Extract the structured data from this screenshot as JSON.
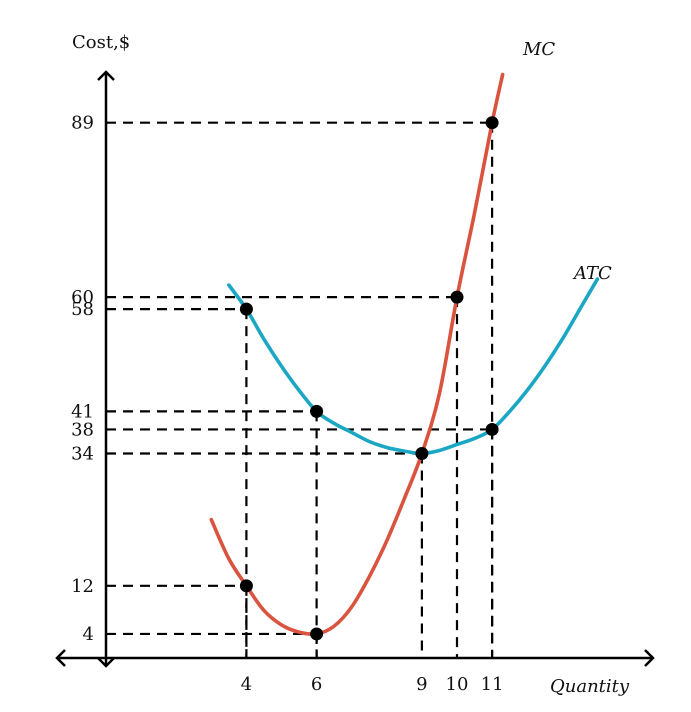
{
  "chart_data": {
    "type": "line",
    "xlabel": "Quantity",
    "ylabel": "Cost,$",
    "xlim": [
      0,
      15.5
    ],
    "ylim": [
      0,
      100
    ],
    "x_ticks": [
      4,
      6,
      9,
      10,
      11
    ],
    "y_ticks": [
      4,
      12,
      34,
      38,
      41,
      58,
      60,
      89
    ],
    "grid": false,
    "series": [
      {
        "name": "MC",
        "color": "#d9533e",
        "x": [
          3.0,
          3.5,
          4.0,
          4.5,
          5.0,
          5.5,
          6.0,
          6.5,
          7.0,
          7.5,
          8.0,
          8.5,
          9.0,
          9.5,
          10.0,
          10.5,
          11.0,
          11.3
        ],
        "y": [
          23,
          16.5,
          12,
          7.9,
          5.5,
          4.3,
          4,
          5.3,
          8.5,
          13.5,
          19.5,
          26.5,
          34,
          44,
          60,
          74,
          89,
          97
        ]
      },
      {
        "name": "ATC",
        "color": "#1ba7c4",
        "x": [
          3.5,
          4.0,
          4.5,
          5.0,
          5.5,
          6.0,
          6.5,
          7.0,
          7.5,
          8.0,
          8.5,
          9.0,
          9.5,
          10.0,
          10.5,
          11.0,
          11.5,
          12.0,
          12.5,
          13.0,
          13.5,
          14.0
        ],
        "y": [
          62,
          58,
          53,
          48.5,
          44.5,
          41,
          39,
          37.5,
          36,
          35,
          34.4,
          34,
          34.5,
          35.5,
          36.5,
          38,
          41,
          44.5,
          48.5,
          53,
          58,
          63
        ]
      }
    ],
    "points": [
      {
        "x": 4,
        "y": 58
      },
      {
        "x": 4,
        "y": 12
      },
      {
        "x": 6,
        "y": 41
      },
      {
        "x": 6,
        "y": 4
      },
      {
        "x": 9,
        "y": 34
      },
      {
        "x": 10,
        "y": 60
      },
      {
        "x": 11,
        "y": 89
      },
      {
        "x": 11,
        "y": 38
      }
    ]
  }
}
